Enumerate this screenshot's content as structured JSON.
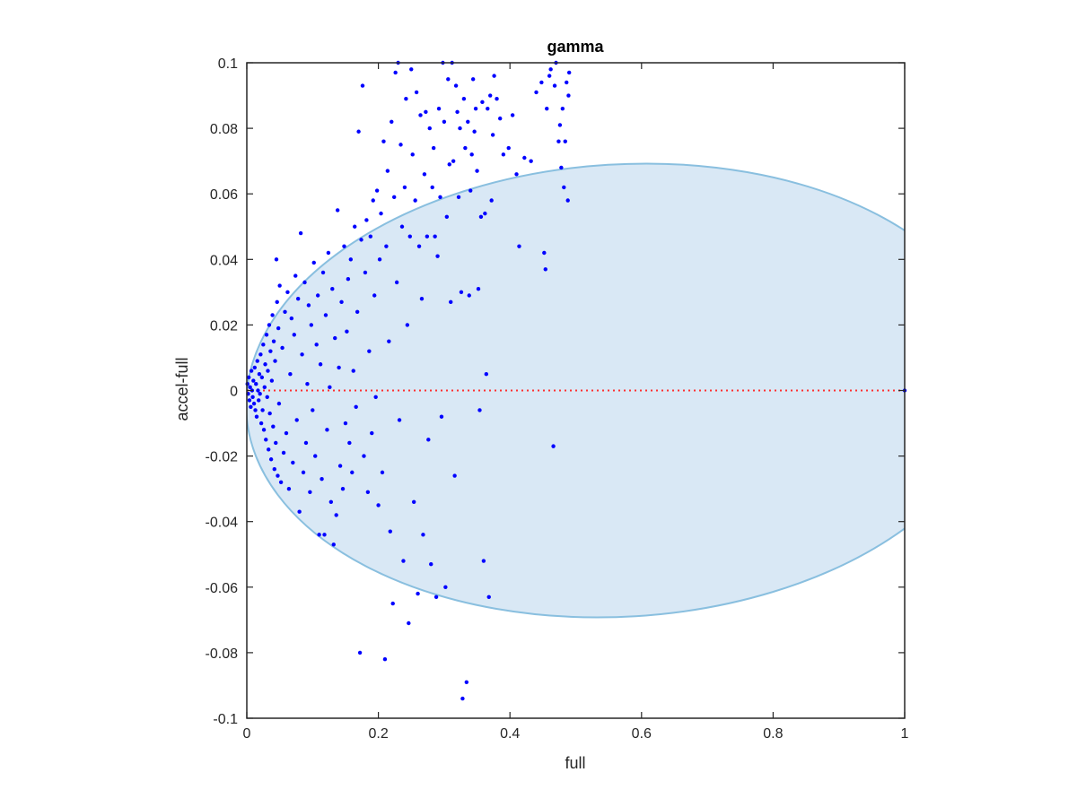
{
  "chart_data": {
    "type": "scatter",
    "title": "gamma",
    "xlabel": "full",
    "ylabel": "accel-full",
    "xlim": [
      0,
      1
    ],
    "ylim": [
      -0.1,
      0.1
    ],
    "x_ticks": [
      "0",
      "0.2",
      "0.4",
      "0.6",
      "0.8",
      "1"
    ],
    "y_ticks": [
      "-0.1",
      "-0.08",
      "-0.06",
      "-0.04",
      "-0.02",
      "0",
      "0.02",
      "0.04",
      "0.06",
      "0.08",
      "0.1"
    ],
    "x_tick_values": [
      0,
      0.2,
      0.4,
      0.6,
      0.8,
      1
    ],
    "y_tick_values": [
      -0.1,
      -0.08,
      -0.06,
      -0.04,
      -0.02,
      0,
      0.02,
      0.04,
      0.06,
      0.08,
      0.1
    ],
    "grid": false,
    "colors": {
      "points": "#0000ff",
      "ellipse_fill": "#d9e8f5",
      "ellipse_edge": "#89bfdf",
      "zero_line": "#ff3030",
      "axes": "#262626"
    },
    "reference_line": {
      "y": 0,
      "style": "dotted"
    },
    "ellipse": {
      "center_x": 0.57,
      "center_y": 0,
      "semi_x": 0.57,
      "semi_y": 0.069,
      "tilt_deg": -3.5
    },
    "points": [
      [
        0.001,
        0.002
      ],
      [
        0.002,
        -0.001
      ],
      [
        0.003,
        0.004
      ],
      [
        0.004,
        -0.003
      ],
      [
        0.005,
        0.001
      ],
      [
        0.006,
        -0.005
      ],
      [
        0.007,
        0.006
      ],
      [
        0.008,
        0.0
      ],
      [
        0.009,
        -0.002
      ],
      [
        0.01,
        0.003
      ],
      [
        0.011,
        -0.004
      ],
      [
        0.012,
        0.007
      ],
      [
        0.013,
        -0.006
      ],
      [
        0.014,
        0.002
      ],
      [
        0.015,
        -0.008
      ],
      [
        0.016,
        0.009
      ],
      [
        0.017,
        0.0
      ],
      [
        0.018,
        -0.003
      ],
      [
        0.019,
        0.005
      ],
      [
        0.02,
        -0.001
      ],
      [
        0.021,
        0.011
      ],
      [
        0.022,
        -0.01
      ],
      [
        0.023,
        0.004
      ],
      [
        0.024,
        -0.006
      ],
      [
        0.025,
        0.014
      ],
      [
        0.026,
        -0.012
      ],
      [
        0.027,
        0.001
      ],
      [
        0.028,
        0.008
      ],
      [
        0.029,
        -0.015
      ],
      [
        0.03,
        0.017
      ],
      [
        0.031,
        -0.002
      ],
      [
        0.032,
        0.006
      ],
      [
        0.033,
        -0.018
      ],
      [
        0.034,
        0.02
      ],
      [
        0.035,
        -0.007
      ],
      [
        0.036,
        0.012
      ],
      [
        0.037,
        -0.021
      ],
      [
        0.038,
        0.003
      ],
      [
        0.039,
        0.023
      ],
      [
        0.04,
        -0.011
      ],
      [
        0.041,
        0.015
      ],
      [
        0.042,
        -0.024
      ],
      [
        0.043,
        0.009
      ],
      [
        0.044,
        -0.016
      ],
      [
        0.045,
        0.04
      ],
      [
        0.046,
        0.027
      ],
      [
        0.047,
        -0.026
      ],
      [
        0.048,
        0.019
      ],
      [
        0.049,
        -0.004
      ],
      [
        0.05,
        0.032
      ],
      [
        0.052,
        -0.028
      ],
      [
        0.054,
        0.013
      ],
      [
        0.056,
        -0.019
      ],
      [
        0.058,
        0.024
      ],
      [
        0.06,
        -0.013
      ],
      [
        0.062,
        0.03
      ],
      [
        0.064,
        -0.03
      ],
      [
        0.066,
        0.005
      ],
      [
        0.068,
        0.022
      ],
      [
        0.07,
        -0.022
      ],
      [
        0.072,
        0.017
      ],
      [
        0.074,
        0.035
      ],
      [
        0.076,
        -0.009
      ],
      [
        0.078,
        0.028
      ],
      [
        0.08,
        -0.037
      ],
      [
        0.082,
        0.048
      ],
      [
        0.084,
        0.011
      ],
      [
        0.086,
        -0.025
      ],
      [
        0.088,
        0.033
      ],
      [
        0.09,
        -0.016
      ],
      [
        0.092,
        0.002
      ],
      [
        0.094,
        0.026
      ],
      [
        0.096,
        -0.031
      ],
      [
        0.098,
        0.02
      ],
      [
        0.1,
        -0.006
      ],
      [
        0.102,
        0.039
      ],
      [
        0.104,
        -0.02
      ],
      [
        0.106,
        0.014
      ],
      [
        0.108,
        0.029
      ],
      [
        0.11,
        -0.044
      ],
      [
        0.112,
        0.008
      ],
      [
        0.114,
        -0.027
      ],
      [
        0.116,
        0.036
      ],
      [
        0.118,
        -0.044
      ],
      [
        0.12,
        0.023
      ],
      [
        0.122,
        -0.012
      ],
      [
        0.124,
        0.042
      ],
      [
        0.126,
        0.001
      ],
      [
        0.128,
        -0.034
      ],
      [
        0.13,
        0.031
      ],
      [
        0.132,
        -0.047
      ],
      [
        0.134,
        0.016
      ],
      [
        0.136,
        -0.038
      ],
      [
        0.138,
        0.055
      ],
      [
        0.14,
        0.007
      ],
      [
        0.142,
        -0.023
      ],
      [
        0.144,
        0.027
      ],
      [
        0.146,
        -0.03
      ],
      [
        0.148,
        0.044
      ],
      [
        0.15,
        -0.01
      ],
      [
        0.152,
        0.018
      ],
      [
        0.154,
        0.034
      ],
      [
        0.156,
        -0.016
      ],
      [
        0.158,
        0.04
      ],
      [
        0.16,
        -0.025
      ],
      [
        0.162,
        0.006
      ],
      [
        0.164,
        0.05
      ],
      [
        0.166,
        -0.005
      ],
      [
        0.168,
        0.024
      ],
      [
        0.17,
        0.079
      ],
      [
        0.172,
        -0.08
      ],
      [
        0.174,
        0.046
      ],
      [
        0.176,
        0.093
      ],
      [
        0.178,
        -0.02
      ],
      [
        0.18,
        0.036
      ],
      [
        0.182,
        0.052
      ],
      [
        0.184,
        -0.031
      ],
      [
        0.186,
        0.012
      ],
      [
        0.188,
        0.047
      ],
      [
        0.19,
        -0.013
      ],
      [
        0.192,
        0.058
      ],
      [
        0.194,
        0.029
      ],
      [
        0.196,
        -0.002
      ],
      [
        0.198,
        0.061
      ],
      [
        0.2,
        -0.035
      ],
      [
        0.202,
        0.04
      ],
      [
        0.204,
        0.054
      ],
      [
        0.206,
        -0.025
      ],
      [
        0.208,
        0.076
      ],
      [
        0.21,
        -0.082
      ],
      [
        0.212,
        0.044
      ],
      [
        0.214,
        0.067
      ],
      [
        0.216,
        0.015
      ],
      [
        0.218,
        -0.043
      ],
      [
        0.22,
        0.082
      ],
      [
        0.222,
        -0.065
      ],
      [
        0.224,
        0.059
      ],
      [
        0.226,
        0.097
      ],
      [
        0.228,
        0.033
      ],
      [
        0.23,
        0.1
      ],
      [
        0.232,
        -0.009
      ],
      [
        0.234,
        0.075
      ],
      [
        0.236,
        0.05
      ],
      [
        0.238,
        -0.052
      ],
      [
        0.24,
        0.062
      ],
      [
        0.242,
        0.089
      ],
      [
        0.244,
        0.02
      ],
      [
        0.246,
        -0.071
      ],
      [
        0.248,
        0.047
      ],
      [
        0.25,
        0.098
      ],
      [
        0.252,
        0.072
      ],
      [
        0.254,
        -0.034
      ],
      [
        0.256,
        0.058
      ],
      [
        0.258,
        0.091
      ],
      [
        0.26,
        -0.062
      ],
      [
        0.262,
        0.044
      ],
      [
        0.264,
        0.084
      ],
      [
        0.266,
        0.028
      ],
      [
        0.268,
        -0.044
      ],
      [
        0.27,
        0.066
      ],
      [
        0.272,
        0.085
      ],
      [
        0.274,
        0.047
      ],
      [
        0.276,
        -0.015
      ],
      [
        0.278,
        0.08
      ],
      [
        0.28,
        -0.053
      ],
      [
        0.282,
        0.062
      ],
      [
        0.284,
        0.074
      ],
      [
        0.286,
        0.047
      ],
      [
        0.288,
        -0.063
      ],
      [
        0.29,
        0.041
      ],
      [
        0.292,
        0.086
      ],
      [
        0.294,
        0.059
      ],
      [
        0.296,
        -0.008
      ],
      [
        0.298,
        0.1
      ],
      [
        0.3,
        0.082
      ],
      [
        0.302,
        -0.06
      ],
      [
        0.304,
        0.053
      ],
      [
        0.306,
        0.095
      ],
      [
        0.308,
        0.069
      ],
      [
        0.31,
        0.027
      ],
      [
        0.312,
        0.1
      ],
      [
        0.314,
        0.07
      ],
      [
        0.316,
        -0.026
      ],
      [
        0.318,
        0.093
      ],
      [
        0.32,
        0.085
      ],
      [
        0.322,
        0.059
      ],
      [
        0.324,
        0.08
      ],
      [
        0.326,
        0.03
      ],
      [
        0.328,
        -0.094
      ],
      [
        0.33,
        0.089
      ],
      [
        0.332,
        0.074
      ],
      [
        0.334,
        -0.089
      ],
      [
        0.336,
        0.082
      ],
      [
        0.338,
        0.029
      ],
      [
        0.34,
        0.061
      ],
      [
        0.342,
        0.072
      ],
      [
        0.344,
        0.095
      ],
      [
        0.346,
        0.079
      ],
      [
        0.348,
        0.086
      ],
      [
        0.35,
        0.067
      ],
      [
        0.352,
        0.031
      ],
      [
        0.354,
        -0.006
      ],
      [
        0.356,
        0.053
      ],
      [
        0.358,
        0.088
      ],
      [
        0.36,
        -0.052
      ],
      [
        0.362,
        0.054
      ],
      [
        0.364,
        0.005
      ],
      [
        0.366,
        0.086
      ],
      [
        0.368,
        -0.063
      ],
      [
        0.37,
        0.09
      ],
      [
        0.372,
        0.058
      ],
      [
        0.374,
        0.078
      ],
      [
        0.376,
        0.096
      ],
      [
        0.38,
        0.089
      ],
      [
        0.385,
        0.083
      ],
      [
        0.39,
        0.072
      ],
      [
        0.398,
        0.074
      ],
      [
        0.404,
        0.084
      ],
      [
        0.41,
        0.066
      ],
      [
        0.414,
        0.044
      ],
      [
        0.422,
        0.071
      ],
      [
        0.432,
        0.07
      ],
      [
        0.44,
        0.091
      ],
      [
        0.448,
        0.094
      ],
      [
        0.452,
        0.042
      ],
      [
        0.454,
        0.037
      ],
      [
        0.456,
        0.086
      ],
      [
        0.46,
        0.096
      ],
      [
        0.462,
        0.098
      ],
      [
        0.466,
        -0.017
      ],
      [
        0.468,
        0.093
      ],
      [
        0.47,
        0.1
      ],
      [
        0.474,
        0.076
      ],
      [
        0.476,
        0.081
      ],
      [
        0.478,
        0.068
      ],
      [
        0.48,
        0.086
      ],
      [
        0.482,
        0.062
      ],
      [
        0.484,
        0.076
      ],
      [
        0.486,
        0.094
      ],
      [
        0.488,
        0.058
      ],
      [
        0.489,
        0.09
      ],
      [
        0.49,
        0.097
      ],
      [
        1.0,
        0.0
      ]
    ]
  }
}
